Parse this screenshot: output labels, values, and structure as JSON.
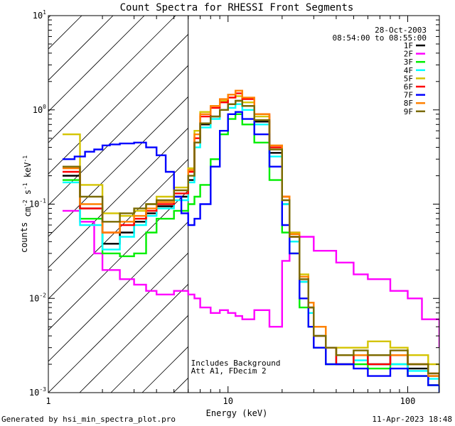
{
  "footer": {
    "generated_by": "Generated by hsi_min_spectra_plot.pro",
    "timestamp": "11-Apr-2023 18:48"
  },
  "colors": {
    "1F": "#000000",
    "2F": "#ff00ff",
    "3F": "#00ee00",
    "4F": "#00ffff",
    "5F": "#d4c400",
    "6F": "#ff0000",
    "7F": "#0000ff",
    "8F": "#ff8000",
    "9F": "#7a6a00",
    "hatch": "#000000"
  },
  "chart_data": {
    "type": "line",
    "title": "Count Spectra for RHESSI Front Segments",
    "xlabel": "Energy (keV)",
    "ylabel": "counts cm^-2 s^-1 keV^-1",
    "xscale": "log",
    "yscale": "log",
    "xlim": [
      1,
      150
    ],
    "ylim": [
      0.001,
      10
    ],
    "x_ticks": [
      {
        "value": 1,
        "label": "1"
      },
      {
        "value": 10,
        "label": "10"
      },
      {
        "value": 100,
        "label": "100"
      }
    ],
    "y_ticks": [
      {
        "value": 10,
        "base": "10",
        "exp": "1"
      },
      {
        "value": 1,
        "base": "10",
        "exp": "0"
      },
      {
        "value": 0.1,
        "base": "10",
        "exp": "-1"
      },
      {
        "value": 0.01,
        "base": "10",
        "exp": "-2"
      },
      {
        "value": 0.001,
        "base": "10",
        "exp": "-3"
      }
    ],
    "hatched_region": {
      "x_from": 1,
      "x_to": 6
    },
    "time_info": [
      "28-Oct-2003",
      "08:54:00 to 08:55:00"
    ],
    "annotations": [
      "Includes Background",
      "Att A1, FDecim 2"
    ],
    "legend_position": "top-right",
    "series": [
      {
        "name": "1F",
        "x": [
          1.2,
          1.5,
          2,
          2.5,
          3,
          3.5,
          4,
          5,
          6,
          6.5,
          7,
          8,
          9,
          10,
          11,
          12,
          14,
          17,
          20,
          22,
          25,
          28,
          30,
          35,
          40,
          50,
          60,
          80,
          100,
          130,
          150
        ],
        "values": [
          0.2,
          0.09,
          0.038,
          0.05,
          0.065,
          0.08,
          0.095,
          0.12,
          0.18,
          0.45,
          0.7,
          0.85,
          1.0,
          1.15,
          1.25,
          1.1,
          0.75,
          0.35,
          0.1,
          0.04,
          0.015,
          0.008,
          0.004,
          0.003,
          0.002,
          0.0025,
          0.002,
          0.0025,
          0.0018,
          0.0015,
          0.0012
        ]
      },
      {
        "name": "2F",
        "x": [
          1.2,
          1.5,
          1.8,
          2,
          2.5,
          3,
          3.5,
          4,
          5,
          6,
          6.5,
          7,
          8,
          9,
          10,
          11,
          12,
          14,
          17,
          19,
          20,
          22,
          25,
          30,
          40,
          50,
          60,
          80,
          100,
          120,
          150
        ],
        "values": [
          0.085,
          0.065,
          0.03,
          0.02,
          0.016,
          0.014,
          0.012,
          0.011,
          0.012,
          0.011,
          0.01,
          0.008,
          0.007,
          0.0075,
          0.007,
          0.0065,
          0.006,
          0.0075,
          0.005,
          0.005,
          0.025,
          0.05,
          0.045,
          0.032,
          0.024,
          0.018,
          0.016,
          0.012,
          0.01,
          0.006,
          0.003
        ]
      },
      {
        "name": "3F",
        "x": [
          1.2,
          1.5,
          2,
          2.5,
          3,
          3.5,
          4,
          5,
          6,
          6.5,
          7,
          8,
          9,
          10,
          11,
          12,
          14,
          17,
          20,
          22,
          25,
          28,
          30,
          35,
          40,
          50,
          60,
          80,
          100,
          130,
          150
        ],
        "values": [
          0.18,
          0.07,
          0.03,
          0.028,
          0.03,
          0.05,
          0.07,
          0.085,
          0.1,
          0.12,
          0.16,
          0.3,
          0.55,
          0.8,
          0.9,
          0.7,
          0.45,
          0.18,
          0.05,
          0.03,
          0.008,
          0.005,
          0.003,
          0.002,
          0.002,
          0.002,
          0.0018,
          0.002,
          0.0015,
          0.0012,
          0.001
        ]
      },
      {
        "name": "4F",
        "x": [
          1.2,
          1.5,
          2,
          2.5,
          3,
          3.5,
          4,
          5,
          6,
          6.5,
          7,
          8,
          9,
          10,
          11,
          12,
          14,
          17,
          20,
          22,
          25,
          28,
          30,
          35,
          40,
          50,
          60,
          80,
          100,
          130,
          150
        ],
        "values": [
          0.17,
          0.06,
          0.033,
          0.045,
          0.06,
          0.075,
          0.09,
          0.11,
          0.17,
          0.4,
          0.65,
          0.8,
          1.0,
          1.05,
          1.15,
          1.0,
          0.7,
          0.32,
          0.1,
          0.04,
          0.015,
          0.007,
          0.004,
          0.003,
          0.002,
          0.0022,
          0.002,
          0.002,
          0.0017,
          0.0014,
          0.0011
        ]
      },
      {
        "name": "5F",
        "x": [
          1.2,
          1.5,
          2,
          2.5,
          3,
          3.5,
          4,
          5,
          6,
          6.5,
          7,
          8,
          9,
          10,
          11,
          12,
          14,
          17,
          20,
          22,
          25,
          28,
          30,
          35,
          40,
          50,
          60,
          80,
          100,
          130,
          150
        ],
        "values": [
          0.55,
          0.16,
          0.08,
          0.075,
          0.085,
          0.1,
          0.12,
          0.15,
          0.24,
          0.6,
          0.95,
          1.1,
          1.25,
          1.35,
          1.4,
          1.2,
          0.85,
          0.4,
          0.12,
          0.05,
          0.018,
          0.009,
          0.005,
          0.003,
          0.003,
          0.003,
          0.0035,
          0.003,
          0.0025,
          0.002,
          0.0015
        ]
      },
      {
        "name": "6F",
        "x": [
          1.2,
          1.5,
          2,
          2.5,
          3,
          3.5,
          4,
          5,
          6,
          6.5,
          7,
          8,
          9,
          10,
          11,
          12,
          14,
          17,
          20,
          22,
          25,
          28,
          30,
          35,
          40,
          50,
          60,
          80,
          100,
          130,
          150
        ],
        "values": [
          0.22,
          0.09,
          0.05,
          0.06,
          0.07,
          0.085,
          0.1,
          0.13,
          0.22,
          0.5,
          0.85,
          1.05,
          1.2,
          1.35,
          1.5,
          1.3,
          0.9,
          0.4,
          0.12,
          0.045,
          0.016,
          0.008,
          0.004,
          0.003,
          0.002,
          0.0025,
          0.002,
          0.0025,
          0.002,
          0.0016,
          0.0012
        ]
      },
      {
        "name": "7F",
        "x": [
          1.2,
          1.4,
          1.6,
          1.8,
          2,
          2.2,
          2.5,
          3,
          3.5,
          4,
          4.5,
          5,
          5.5,
          6,
          6.5,
          7,
          8,
          9,
          10,
          11,
          12,
          14,
          17,
          20,
          22,
          25,
          28,
          30,
          35,
          40,
          50,
          60,
          80,
          100,
          130,
          150
        ],
        "values": [
          0.3,
          0.32,
          0.36,
          0.38,
          0.42,
          0.43,
          0.44,
          0.45,
          0.4,
          0.33,
          0.22,
          0.12,
          0.08,
          0.06,
          0.07,
          0.1,
          0.25,
          0.6,
          0.9,
          0.95,
          0.8,
          0.55,
          0.25,
          0.06,
          0.03,
          0.01,
          0.005,
          0.003,
          0.002,
          0.002,
          0.0018,
          0.0015,
          0.0018,
          0.0015,
          0.0012,
          0.001
        ]
      },
      {
        "name": "8F",
        "x": [
          1.2,
          1.5,
          2,
          2.5,
          3,
          3.5,
          4,
          5,
          6,
          6.5,
          7,
          8,
          9,
          10,
          11,
          12,
          14,
          17,
          20,
          22,
          25,
          28,
          30,
          35,
          40,
          50,
          60,
          80,
          100,
          130,
          150
        ],
        "values": [
          0.24,
          0.1,
          0.05,
          0.065,
          0.075,
          0.09,
          0.105,
          0.14,
          0.23,
          0.55,
          0.9,
          1.1,
          1.3,
          1.45,
          1.6,
          1.35,
          0.9,
          0.42,
          0.12,
          0.048,
          0.017,
          0.009,
          0.005,
          0.003,
          0.0025,
          0.0025,
          0.0025,
          0.0025,
          0.002,
          0.0015,
          0.0012
        ]
      },
      {
        "name": "9F",
        "x": [
          1.2,
          1.5,
          2,
          2.5,
          3,
          3.5,
          4,
          5,
          6,
          6.5,
          7,
          8,
          9,
          10,
          11,
          12,
          14,
          17,
          20,
          22,
          25,
          28,
          30,
          35,
          40,
          50,
          60,
          80,
          100,
          130,
          150
        ],
        "values": [
          0.25,
          0.12,
          0.065,
          0.08,
          0.09,
          0.1,
          0.11,
          0.14,
          0.2,
          0.45,
          0.72,
          0.85,
          1.0,
          1.15,
          1.25,
          1.1,
          0.78,
          0.38,
          0.11,
          0.045,
          0.016,
          0.008,
          0.004,
          0.003,
          0.0025,
          0.0028,
          0.0025,
          0.0028,
          0.002,
          0.0016,
          0.0012
        ]
      }
    ]
  }
}
